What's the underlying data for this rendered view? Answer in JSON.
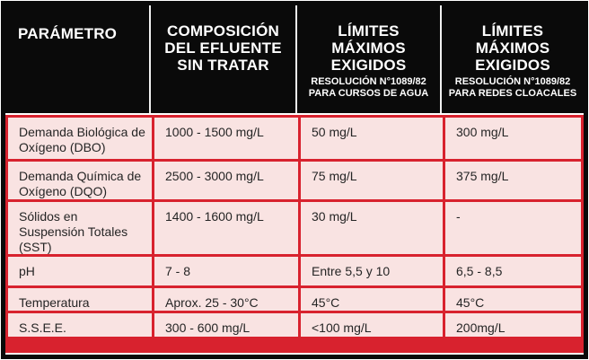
{
  "colors": {
    "frame_black": "#0a0a0a",
    "header_bg": "#0a0a0a",
    "header_text": "#ffffff",
    "grid_red": "#d8222e",
    "cell_pink": "#f9e3e2",
    "body_text": "#252525"
  },
  "header": {
    "columns": [
      {
        "main": [
          "PARÁMETRO"
        ],
        "sub": []
      },
      {
        "main": [
          "COMPOSICIÓN",
          "DEL EFLUENTE",
          "SIN TRATAR"
        ],
        "sub": []
      },
      {
        "main": [
          "LÍMITES",
          "MÁXIMOS",
          "EXIGIDOS"
        ],
        "sub": [
          "RESOLUCIÓN N°1089/82",
          "PARA CURSOS DE AGUA"
        ]
      },
      {
        "main": [
          "LÍMITES",
          "MÁXIMOS",
          "EXIGIDOS"
        ],
        "sub": [
          "RESOLUCIÓN N°1089/82",
          "PARA REDES CLOACALES"
        ]
      }
    ]
  },
  "rows": [
    {
      "parameter": "Demanda Biológica de Oxígeno (DBO)",
      "untreated": "1000 - 1500 mg/L",
      "water": "50 mg/L",
      "sewer": "300 mg/L"
    },
    {
      "parameter": "Demanda Química de Oxígeno (DQO)",
      "untreated": "2500 - 3000 mg/L",
      "water": "75 mg/L",
      "sewer": "375 mg/L"
    },
    {
      "parameter": "Sólidos en Suspensión Totales (SST)",
      "untreated": "1400 - 1600 mg/L",
      "water": "30 mg/L",
      "sewer": "-"
    },
    {
      "parameter": "pH",
      "untreated": "7 - 8",
      "water": "Entre 5,5 y 10",
      "sewer": "6,5 - 8,5"
    },
    {
      "parameter": "Temperatura",
      "untreated": "Aprox. 25 - 30°C",
      "water": "45°C",
      "sewer": "45°C"
    },
    {
      "parameter": "S.S.E.E.",
      "untreated": "300 - 600 mg/L",
      "water": "<100 mg/L",
      "sewer": "200mg/L"
    }
  ]
}
